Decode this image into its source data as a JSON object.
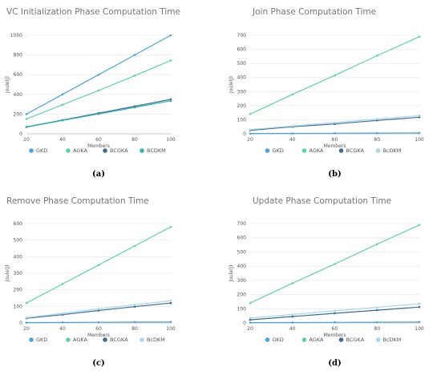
{
  "colors": {
    "GKD": "#4aa3df",
    "AGKA": "#5fd3a4",
    "BCGKA": "#3d6c96",
    "BcDKM": "#a9d8ef",
    "BCDKM_a": "#2bb5b5"
  },
  "chart_data": [
    {
      "type": "line",
      "label": "(a)",
      "title": "VC Initialization Phase Computation Time",
      "xlabel": "Members",
      "ylabel": "Joule(J)",
      "x": [
        20,
        40,
        60,
        80,
        100
      ],
      "ylim": [
        0,
        1000
      ],
      "yticks": [
        0,
        200,
        400,
        600,
        800,
        1000
      ],
      "xticks": [
        20,
        40,
        60,
        80,
        100
      ],
      "grid": true,
      "legend": "bottom",
      "series": [
        {
          "name": "GKD",
          "color": "#4aa3df",
          "values": [
            200,
            400,
            600,
            800,
            1000
          ]
        },
        {
          "name": "AGKA",
          "color": "#5fd3a4",
          "values": [
            150,
            295,
            440,
            590,
            745
          ]
        },
        {
          "name": "BCGKA",
          "color": "#3d6c96",
          "values": [
            70,
            140,
            210,
            280,
            350
          ]
        },
        {
          "name": "BCDKM",
          "color": "#2bb5b5",
          "values": [
            68,
            136,
            202,
            268,
            335
          ]
        }
      ]
    },
    {
      "type": "line",
      "label": "(b)",
      "title": "Join Phase Computation Time",
      "xlabel": "Members",
      "ylabel": "Joule(J)",
      "x": [
        20,
        40,
        60,
        80,
        100
      ],
      "ylim": [
        0,
        700
      ],
      "yticks": [
        0,
        100,
        200,
        300,
        400,
        500,
        600,
        700
      ],
      "xticks": [
        20,
        40,
        60,
        80,
        100
      ],
      "grid": true,
      "legend": "bottom",
      "series": [
        {
          "name": "GKD",
          "color": "#4aa3df",
          "values": [
            2,
            3,
            4,
            5,
            6
          ]
        },
        {
          "name": "AGKA",
          "color": "#5fd3a4",
          "values": [
            140,
            280,
            415,
            555,
            690
          ]
        },
        {
          "name": "BCGKA",
          "color": "#3d6c96",
          "values": [
            25,
            50,
            70,
            95,
            118
          ]
        },
        {
          "name": "BcDKM",
          "color": "#a9d8ef",
          "values": [
            30,
            55,
            80,
            105,
            130
          ]
        }
      ]
    },
    {
      "type": "line",
      "label": "(c)",
      "title": "Remove Phase Computation Time",
      "xlabel": "Members",
      "ylabel": "Joule(J)",
      "x": [
        20,
        40,
        60,
        80,
        100
      ],
      "ylim": [
        0,
        600
      ],
      "yticks": [
        0,
        100,
        200,
        300,
        400,
        500,
        600
      ],
      "xticks": [
        20,
        40,
        60,
        80,
        100
      ],
      "grid": true,
      "legend": "bottom",
      "series": [
        {
          "name": "GKD",
          "color": "#4aa3df",
          "values": [
            2,
            3,
            4,
            5,
            6
          ]
        },
        {
          "name": "AGKA",
          "color": "#5fd3a4",
          "values": [
            120,
            235,
            350,
            465,
            580
          ]
        },
        {
          "name": "BCGKA",
          "color": "#3d6c96",
          "values": [
            28,
            50,
            75,
            98,
            120
          ]
        },
        {
          "name": "BcDKM",
          "color": "#a9d8ef",
          "values": [
            32,
            58,
            85,
            110,
            135
          ]
        }
      ]
    },
    {
      "type": "line",
      "label": "(d)",
      "title": "Update Phase Computation Time",
      "xlabel": "Members",
      "ylabel": "Joule(J)",
      "x": [
        20,
        40,
        60,
        80,
        100
      ],
      "ylim": [
        0,
        700
      ],
      "yticks": [
        0,
        100,
        200,
        300,
        400,
        500,
        600,
        700
      ],
      "xticks": [
        20,
        40,
        60,
        80,
        100
      ],
      "grid": true,
      "legend": "bottom",
      "series": [
        {
          "name": "GKD",
          "color": "#4aa3df",
          "values": [
            2,
            3,
            4,
            5,
            6
          ]
        },
        {
          "name": "AGKA",
          "color": "#5fd3a4",
          "values": [
            140,
            280,
            415,
            555,
            690
          ]
        },
        {
          "name": "BCGKA",
          "color": "#3d6c96",
          "values": [
            22,
            45,
            68,
            90,
            112
          ]
        },
        {
          "name": "BcDKM",
          "color": "#a9d8ef",
          "values": [
            35,
            60,
            85,
            110,
            135
          ]
        }
      ]
    }
  ]
}
